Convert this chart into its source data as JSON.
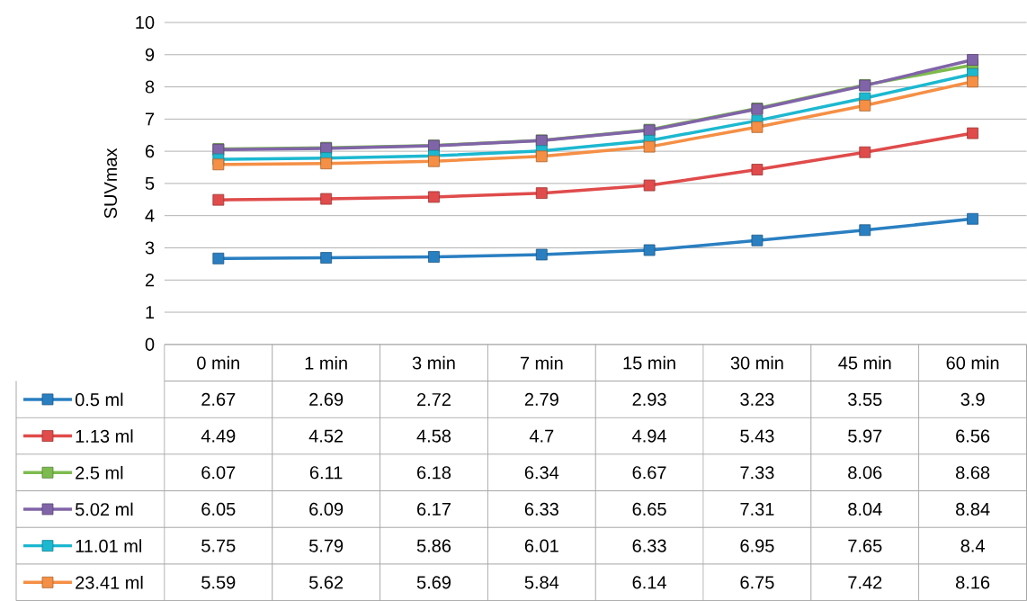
{
  "chart_data": {
    "type": "line",
    "ylabel": "SUVmax",
    "categories": [
      "0 min",
      "1 min",
      "3 min",
      "7 min",
      "15 min",
      "30 min",
      "45 min",
      "60 min"
    ],
    "series": [
      {
        "name": "0.5 ml",
        "color": "#2a7fc1",
        "values": [
          2.67,
          2.69,
          2.72,
          2.79,
          2.93,
          3.23,
          3.55,
          3.9
        ]
      },
      {
        "name": "1.13 ml",
        "color": "#e04b4b",
        "values": [
          4.49,
          4.52,
          4.58,
          4.7,
          4.94,
          5.43,
          5.97,
          6.56
        ]
      },
      {
        "name": "2.5 ml",
        "color": "#7dbb4e",
        "values": [
          6.07,
          6.11,
          6.18,
          6.34,
          6.67,
          7.33,
          8.06,
          8.68
        ]
      },
      {
        "name": "5.02 ml",
        "color": "#8064a8",
        "values": [
          6.05,
          6.09,
          6.17,
          6.33,
          6.65,
          7.31,
          8.04,
          8.84
        ]
      },
      {
        "name": "11.01 ml",
        "color": "#1cb8d0",
        "values": [
          5.75,
          5.79,
          5.86,
          6.01,
          6.33,
          6.95,
          7.65,
          8.4
        ]
      },
      {
        "name": "23.41 ml",
        "color": "#f58f45",
        "values": [
          5.59,
          5.62,
          5.69,
          5.84,
          6.14,
          6.75,
          7.42,
          8.16
        ]
      }
    ],
    "ylim": [
      0,
      10
    ],
    "yticks": [
      0,
      1,
      2,
      3,
      4,
      5,
      6,
      7,
      8,
      9,
      10
    ],
    "grid": "y",
    "marker": "square",
    "line_style": "solid",
    "legend": "bottom",
    "data_labels": true
  }
}
